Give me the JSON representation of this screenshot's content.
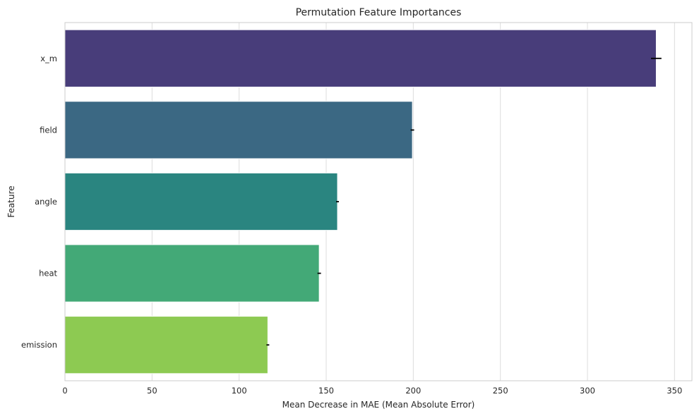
{
  "chart_data": {
    "type": "bar",
    "orientation": "horizontal",
    "title": "Permutation Feature Importances",
    "xlabel": "Mean Decrease in MAE (Mean Absolute Error)",
    "ylabel": "Feature",
    "categories": [
      "x_m",
      "field",
      "angle",
      "heat",
      "emission"
    ],
    "values": [
      339.5,
      199.5,
      156.5,
      146,
      116.5
    ],
    "errors": [
      3,
      1,
      0.8,
      1,
      0.8
    ],
    "colors": [
      "#483d7a",
      "#3b6883",
      "#2a8580",
      "#43a977",
      "#8dca52"
    ],
    "xlim": [
      0,
      360
    ],
    "xticks": [
      0,
      50,
      100,
      150,
      200,
      250,
      300,
      350
    ],
    "grid": true,
    "legend": "none"
  }
}
